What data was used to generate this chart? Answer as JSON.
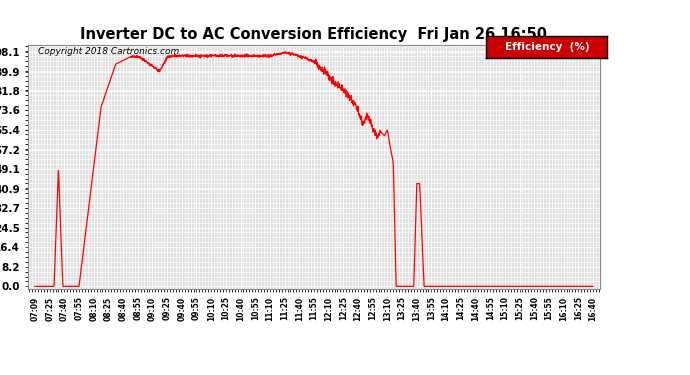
{
  "title": "Inverter DC to AC Conversion Efficiency  Fri Jan 26 16:50",
  "copyright": "Copyright 2018 Cartronics.com",
  "legend_label": "Efficiency  (%)",
  "legend_bg": "#cc0000",
  "line_color": "#ff0000",
  "bg_color": "#ffffff",
  "plot_bg_color": "#e0e0e0",
  "grid_color": "#ffffff",
  "yticks": [
    0.0,
    8.2,
    16.4,
    24.5,
    32.7,
    40.9,
    49.1,
    57.2,
    65.4,
    73.6,
    81.8,
    89.9,
    98.1
  ],
  "ylim": [
    -1,
    101
  ],
  "xtick_labels": [
    "07:09",
    "07:25",
    "07:40",
    "07:55",
    "08:10",
    "08:25",
    "08:40",
    "08:55",
    "09:10",
    "09:25",
    "09:40",
    "09:55",
    "10:10",
    "10:25",
    "10:40",
    "10:55",
    "11:10",
    "11:25",
    "11:40",
    "11:55",
    "12:10",
    "12:25",
    "12:40",
    "12:55",
    "13:10",
    "13:25",
    "13:40",
    "13:55",
    "14:10",
    "14:25",
    "14:40",
    "14:55",
    "15:10",
    "15:25",
    "15:40",
    "15:55",
    "16:10",
    "16:25",
    "16:40"
  ]
}
